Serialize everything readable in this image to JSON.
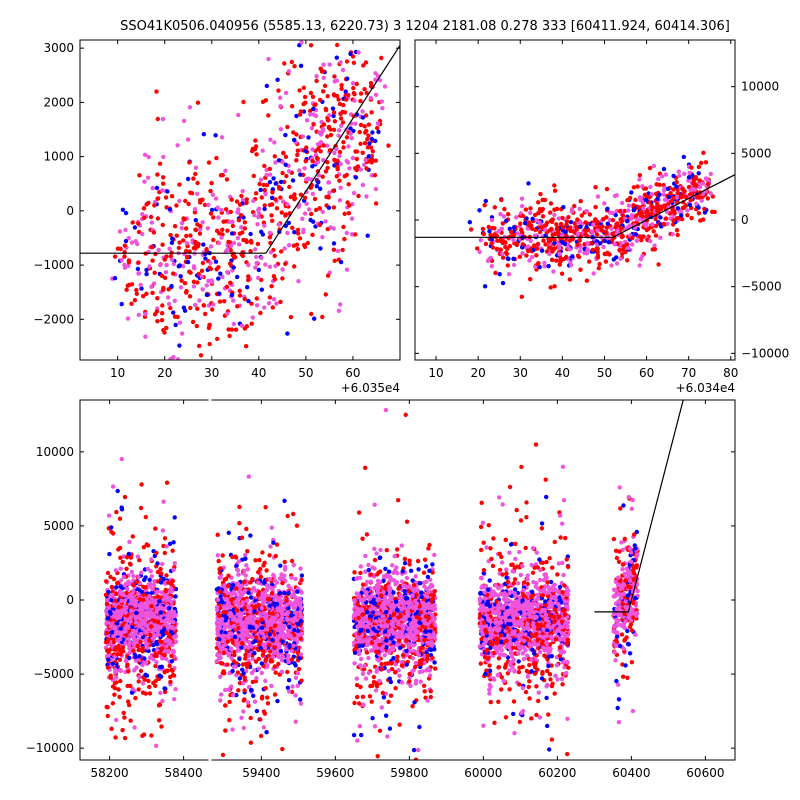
{
  "title": "SSO41K0506.040956 (5585.13, 6220.73)   3 1204 2181.08 0.278 333 [60411.924, 60414.306]",
  "colors": {
    "red": "#ff0000",
    "blue": "#0000ff",
    "magenta": "#ee55dd",
    "line": "#000000"
  },
  "chart_data": [
    {
      "id": "top-left",
      "type": "scatter",
      "xlim": [
        2,
        70
      ],
      "ylim": [
        -2750,
        3150
      ],
      "xticks": [
        10,
        20,
        30,
        40,
        50,
        60
      ],
      "yticks": [
        -2000,
        -1000,
        0,
        1000,
        2000,
        3000
      ],
      "offset_label": "+6.035e4",
      "model_line": {
        "x": [
          2,
          41.5,
          70
        ],
        "y": [
          -780,
          -780,
          3050
        ]
      },
      "clusters": [
        {
          "cx": 12,
          "cy": -800,
          "sx": 1.5,
          "sy": 500,
          "n": 25
        },
        {
          "cx": 17,
          "cy": -700,
          "sx": 3,
          "sy": 1000,
          "n": 90
        },
        {
          "cx": 24,
          "cy": -700,
          "sx": 4,
          "sy": 1000,
          "n": 150
        },
        {
          "cx": 31,
          "cy": -800,
          "sx": 4,
          "sy": 800,
          "n": 150
        },
        {
          "cx": 38,
          "cy": -700,
          "sx": 3,
          "sy": 900,
          "n": 110
        },
        {
          "cx": 44,
          "cy": 200,
          "sx": 3,
          "sy": 900,
          "n": 100
        },
        {
          "cx": 49,
          "cy": 900,
          "sx": 3,
          "sy": 1100,
          "n": 110
        },
        {
          "cx": 54,
          "cy": 1200,
          "sx": 3,
          "sy": 1200,
          "n": 130
        },
        {
          "cx": 60,
          "cy": 1400,
          "sx": 3,
          "sy": 900,
          "n": 140
        },
        {
          "cx": 64,
          "cy": 2000,
          "sx": 1.5,
          "sy": 700,
          "n": 40
        }
      ]
    },
    {
      "id": "top-right",
      "type": "scatter",
      "xlim": [
        5,
        81
      ],
      "ylim": [
        -10500,
        13500
      ],
      "xticks": [
        10,
        20,
        30,
        40,
        50,
        60,
        70,
        80
      ],
      "yticks": [
        -10000,
        -5000,
        0,
        5000,
        10000
      ],
      "offset_label": "+6.034e4",
      "model_line": {
        "x": [
          5,
          52,
          81
        ],
        "y": [
          -1300,
          -1300,
          3400
        ]
      },
      "clusters": [
        {
          "cx": 25,
          "cy": -1500,
          "sx": 3,
          "sy": 1300,
          "n": 90
        },
        {
          "cx": 33,
          "cy": -1200,
          "sx": 3,
          "sy": 1500,
          "n": 130
        },
        {
          "cx": 40,
          "cy": -1500,
          "sx": 3,
          "sy": 1200,
          "n": 130
        },
        {
          "cx": 47,
          "cy": -1200,
          "sx": 3,
          "sy": 1200,
          "n": 120
        },
        {
          "cx": 54,
          "cy": -700,
          "sx": 3,
          "sy": 1100,
          "n": 120
        },
        {
          "cx": 60,
          "cy": 300,
          "sx": 2.5,
          "sy": 1400,
          "n": 120
        },
        {
          "cx": 66,
          "cy": 1500,
          "sx": 3,
          "sy": 1200,
          "n": 140
        },
        {
          "cx": 72,
          "cy": 2200,
          "sx": 2,
          "sy": 900,
          "n": 80
        }
      ]
    },
    {
      "id": "bottom",
      "type": "scatter",
      "xlim": [
        58120,
        60680
      ],
      "ylim": [
        -10800,
        13500
      ],
      "xticks": [
        58200,
        58400,
        59400,
        59600,
        59800,
        60000,
        60200,
        60400,
        60600
      ],
      "yticks": [
        -10000,
        -5000,
        0,
        5000,
        10000
      ],
      "axis_break": {
        "x_from": 58435,
        "x_to": 59260,
        "break_at": 58470
      },
      "model_line": {
        "x": [
          60300,
          60392,
          60540
        ],
        "y": [
          -800,
          -800,
          13500
        ]
      },
      "seasons": [
        {
          "x0": 58190,
          "x1": 58380,
          "n": 1400
        },
        {
          "x0": 59280,
          "x1": 59510,
          "n": 1500
        },
        {
          "x0": 59650,
          "x1": 59870,
          "n": 1500
        },
        {
          "x0": 59990,
          "x1": 60230,
          "n": 1500
        },
        {
          "x0": 60352,
          "x1": 60417,
          "n": 350
        }
      ]
    }
  ]
}
